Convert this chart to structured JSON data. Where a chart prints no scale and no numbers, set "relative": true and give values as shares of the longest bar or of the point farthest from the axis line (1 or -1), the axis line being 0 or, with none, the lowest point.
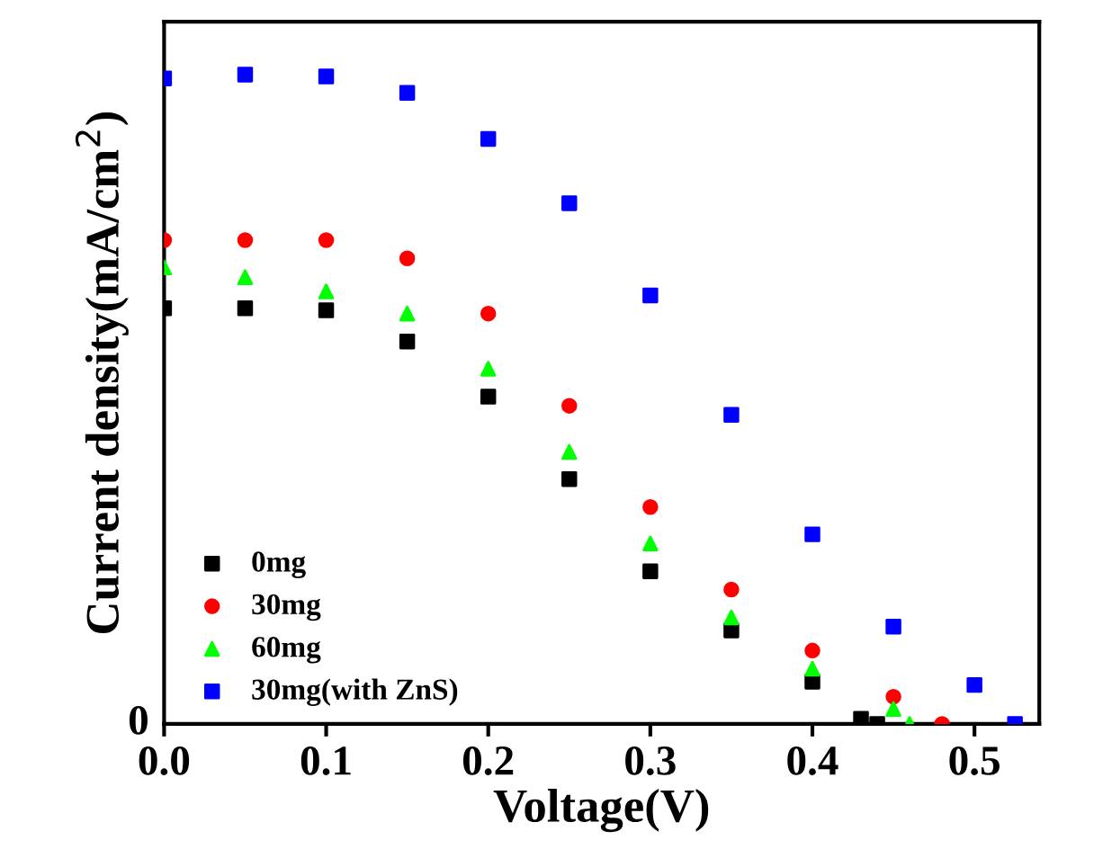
{
  "chart_data": {
    "type": "scatter",
    "xlabel": "Voltage(V)",
    "ylabel": "Current density(mA/cm$^{2}$)",
    "relative": true,
    "xlim": [
      0,
      0.54
    ],
    "xticks": [
      {
        "value": 0,
        "label": "0.0"
      },
      0.1,
      0.2,
      0.3,
      0.4,
      0.5
    ],
    "legend": "bottom left",
    "annotations": [
      "0"
    ],
    "series": [
      {
        "name": "0mg",
        "color": "#000000",
        "marker": "square",
        "x": [
          0,
          0.05,
          0.1,
          0.15,
          0.2,
          0.25,
          0.3,
          0.35,
          0.4,
          0.43,
          0.44
        ],
        "values": [
          0.64,
          0.64,
          0.637,
          0.589,
          0.504,
          0.377,
          0.235,
          0.144,
          0.065,
          0.008,
          0
        ]
      },
      {
        "name": "30mg",
        "color": "#ff0000",
        "marker": "circle",
        "x": [
          0,
          0.05,
          0.1,
          0.15,
          0.2,
          0.25,
          0.3,
          0.35,
          0.4,
          0.45,
          0.48
        ],
        "values": [
          0.745,
          0.745,
          0.745,
          0.717,
          0.632,
          0.49,
          0.334,
          0.207,
          0.113,
          0.042,
          0
        ]
      },
      {
        "name": "60mg",
        "color": "#00ff00",
        "marker": "triangle",
        "x": [
          0,
          0.05,
          0.1,
          0.15,
          0.2,
          0.25,
          0.3,
          0.35,
          0.4,
          0.45,
          0.46
        ],
        "values": [
          0.703,
          0.688,
          0.666,
          0.632,
          0.547,
          0.419,
          0.278,
          0.164,
          0.085,
          0.023,
          0
        ]
      },
      {
        "name": "30mg(with ZnS)",
        "color": "#0000ff",
        "marker": "square",
        "x": [
          0,
          0.05,
          0.1,
          0.15,
          0.2,
          0.25,
          0.3,
          0.35,
          0.4,
          0.45,
          0.5,
          0.525
        ],
        "values": [
          0.994,
          1,
          0.997,
          0.972,
          0.901,
          0.802,
          0.66,
          0.476,
          0.292,
          0.15,
          0.06,
          0
        ]
      }
    ]
  }
}
